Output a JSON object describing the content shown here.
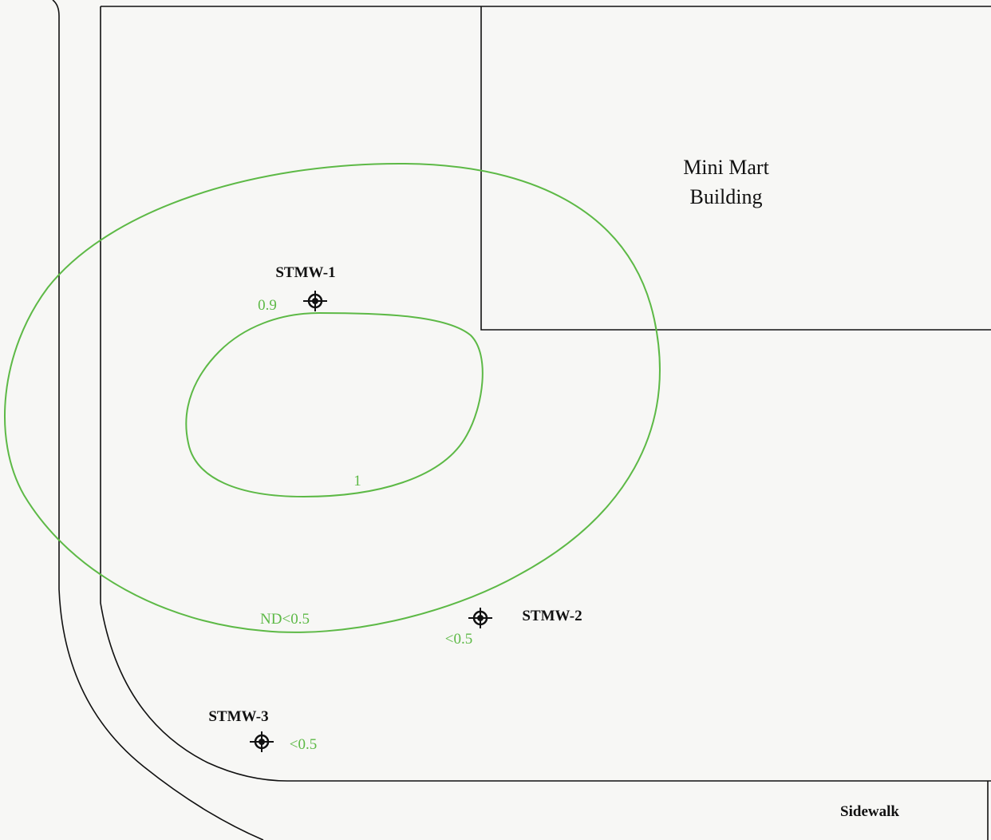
{
  "map": {
    "building_label_line1": "Mini Mart",
    "building_label_line2": "Building",
    "sidewalk_label": "Sidewalk",
    "wells": [
      {
        "id": "STMW-1",
        "value": "0.9"
      },
      {
        "id": "STMW-2",
        "value": "<0.5"
      },
      {
        "id": "STMW-3",
        "value": "<0.5"
      }
    ],
    "contours": [
      {
        "label": "1"
      },
      {
        "label": "ND<0.5"
      }
    ],
    "colors": {
      "contour": "#5db946",
      "linework": "#111111",
      "background": "#f7f7f5"
    },
    "icons": {
      "well": "monitoring-well-crosshair-icon"
    }
  }
}
